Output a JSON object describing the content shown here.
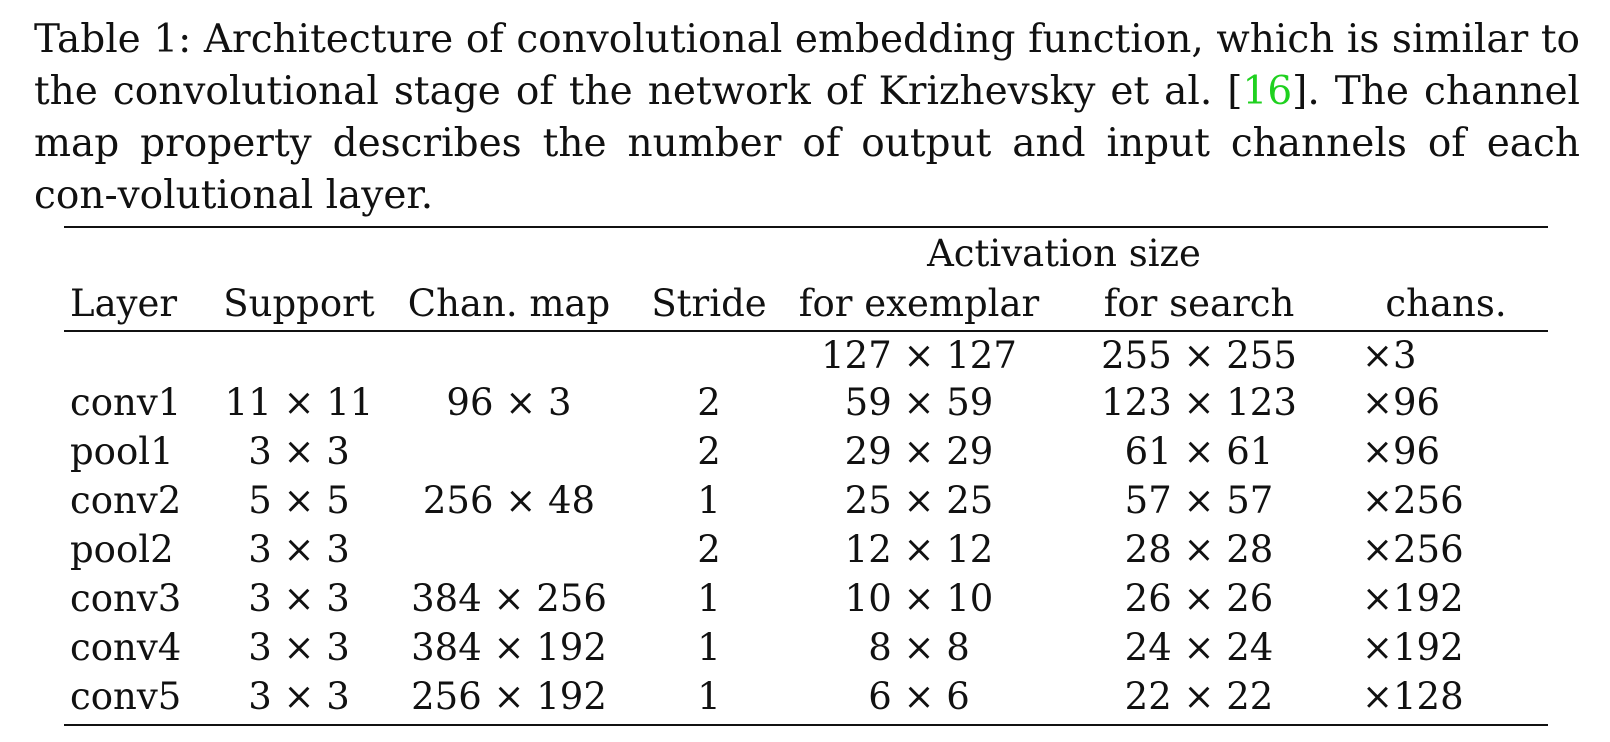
{
  "caption": {
    "prefix": "Table 1: Architecture of convolutional embedding function, which is similar to the convolutional stage of the network of Krizhevsky et al. ",
    "cite_open": "[",
    "cite_number": "16",
    "cite_close": "]",
    "suffix": ". The channel map property describes the number of output and input channels of each con-volutional layer.",
    "cite_color": "#1fd11f"
  },
  "table": {
    "group_header": "Activation size",
    "columns": [
      "Layer",
      "Support",
      "Chan. map",
      "Stride",
      "for exemplar",
      "for search",
      "chans."
    ],
    "rows": [
      [
        "",
        "",
        "",
        "",
        "127 × 127",
        "255 × 255",
        "×3"
      ],
      [
        "conv1",
        "11 × 11",
        "96 × 3",
        "2",
        "59 × 59",
        "123 × 123",
        "×96"
      ],
      [
        "pool1",
        "3 × 3",
        "",
        "2",
        "29 × 29",
        "61 × 61",
        "×96"
      ],
      [
        "conv2",
        "5 × 5",
        "256 × 48",
        "1",
        "25 × 25",
        "57 × 57",
        "×256"
      ],
      [
        "pool2",
        "3 × 3",
        "",
        "2",
        "12 × 12",
        "28 × 28",
        "×256"
      ],
      [
        "conv3",
        "3 × 3",
        "384 × 256",
        "1",
        "10 × 10",
        "26 × 26",
        "×192"
      ],
      [
        "conv4",
        "3 × 3",
        "384 × 192",
        "1",
        "8 × 8",
        "24 × 24",
        "×192"
      ],
      [
        "conv5",
        "3 × 3",
        "256 × 192",
        "1",
        "6 × 6",
        "22 × 22",
        "×128"
      ]
    ]
  }
}
